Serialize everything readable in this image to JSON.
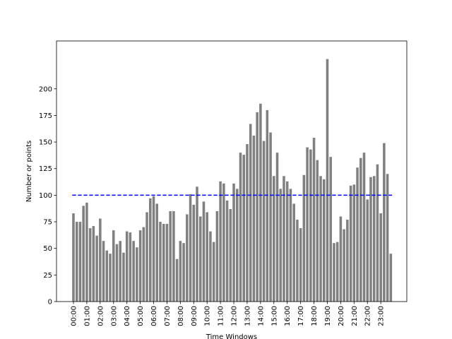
{
  "chart_data": {
    "type": "bar",
    "xlabel": "Time Windows",
    "ylabel": "Number or points",
    "ylim": [
      0,
      245
    ],
    "yticks": [
      0,
      25,
      50,
      75,
      100,
      125,
      150,
      175,
      200
    ],
    "xtick_labels": [
      "00:00",
      "01:00",
      "02:00",
      "03:00",
      "04:00",
      "05:00",
      "06:00",
      "07:00",
      "08:00",
      "09:00",
      "10:00",
      "11:00",
      "12:00",
      "13:00",
      "14:00",
      "15:00",
      "16:00",
      "17:00",
      "18:00",
      "19:00",
      "20:00",
      "21:00",
      "22:00",
      "23:00"
    ],
    "bars_per_hour": 4,
    "bar_color": "#808080",
    "threshold": {
      "value": 100,
      "color": "#0000ff",
      "style": "dashed"
    },
    "values": [
      83,
      75,
      75,
      90,
      93,
      69,
      71,
      62,
      78,
      57,
      48,
      45,
      67,
      54,
      57,
      46,
      66,
      65,
      57,
      51,
      67,
      70,
      84,
      97,
      99,
      92,
      75,
      73,
      73,
      85,
      85,
      40,
      57,
      55,
      82,
      101,
      91,
      108,
      80,
      94,
      84,
      66,
      56,
      85,
      113,
      111,
      95,
      87,
      111,
      106,
      140,
      138,
      148,
      167,
      156,
      178,
      186,
      151,
      180,
      159,
      118,
      140,
      106,
      118,
      113,
      106,
      92,
      77,
      69,
      119,
      145,
      143,
      154,
      133,
      118,
      115,
      228,
      136,
      55,
      56,
      80,
      68,
      77,
      109,
      110,
      126,
      135,
      140,
      96,
      117,
      118,
      129,
      83,
      149,
      120,
      45
    ],
    "grid": false,
    "legend": "none"
  }
}
